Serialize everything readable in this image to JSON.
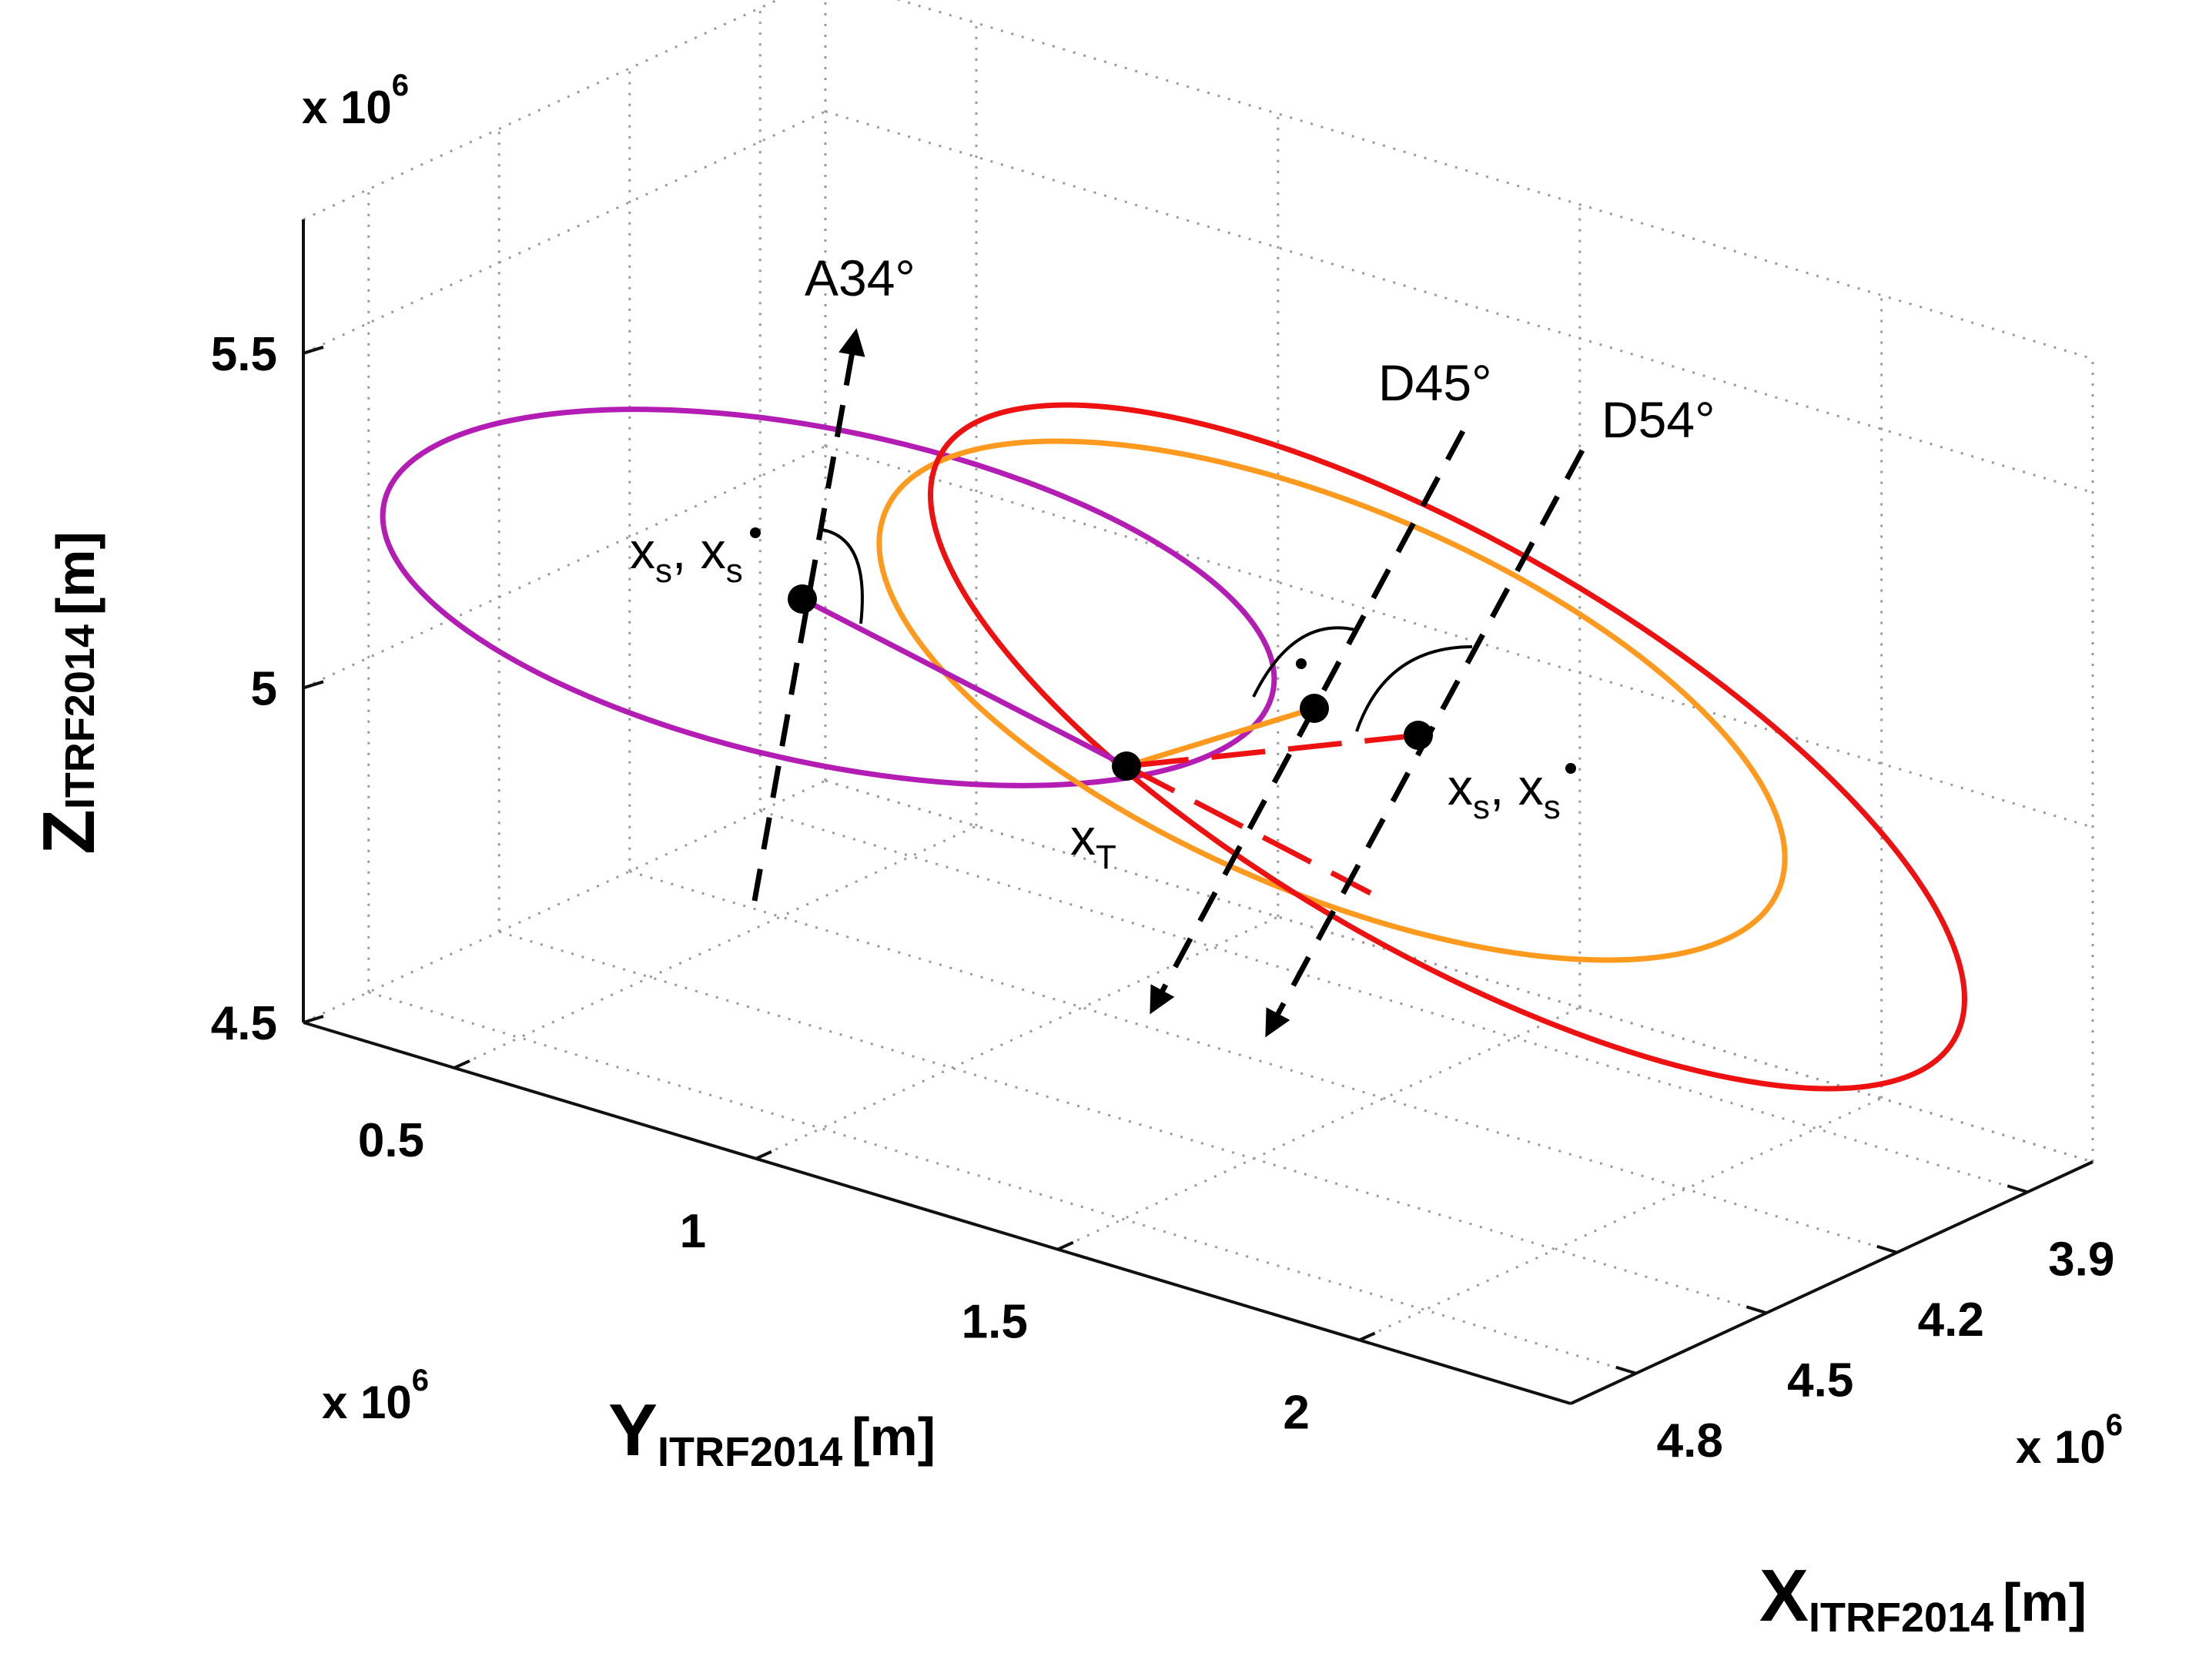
{
  "chart_data": {
    "type": "3d-line",
    "title": "",
    "axes": {
      "x": {
        "label": "X",
        "subscript": "ITRF2014",
        "unit": "[m]",
        "ticks": [
          "3.9",
          "4.2",
          "4.5",
          "4.8"
        ],
        "multiplier": "x 10",
        "exponent": "6",
        "range": [
          3.75,
          4.95
        ]
      },
      "y": {
        "label": "Y",
        "subscript": "ITRF2014",
        "unit": "[m]",
        "ticks": [
          "0.5",
          "1",
          "1.5",
          "2"
        ],
        "multiplier": "x 10",
        "exponent": "6",
        "range": [
          0.25,
          2.35
        ]
      },
      "z": {
        "label": "Z",
        "subscript": "ITRF2014",
        "unit": "[m]",
        "ticks": [
          "4.5",
          "5",
          "5.5"
        ],
        "multiplier": "x 10",
        "exponent": "6",
        "range": [
          4.5,
          5.7
        ]
      }
    },
    "series": [
      {
        "name": "A34°",
        "color": "#b31db3",
        "satellite_label": "x",
        "satellite_sub": "s",
        "velocity_label": "x",
        "velocity_sub": "s",
        "direction_label": "A34°"
      },
      {
        "name": "D45°",
        "color": "#ff9a1f",
        "direction_label": "D45°"
      },
      {
        "name": "D54°",
        "color": "#ee1111",
        "satellite_label": "x",
        "satellite_sub": "s",
        "velocity_label": "x",
        "velocity_sub": "s",
        "direction_label": "D54°"
      }
    ],
    "target": {
      "label": "x",
      "sub": "T"
    },
    "annotations": [
      "A34°",
      "D45°",
      "D54°"
    ],
    "grid": true
  }
}
